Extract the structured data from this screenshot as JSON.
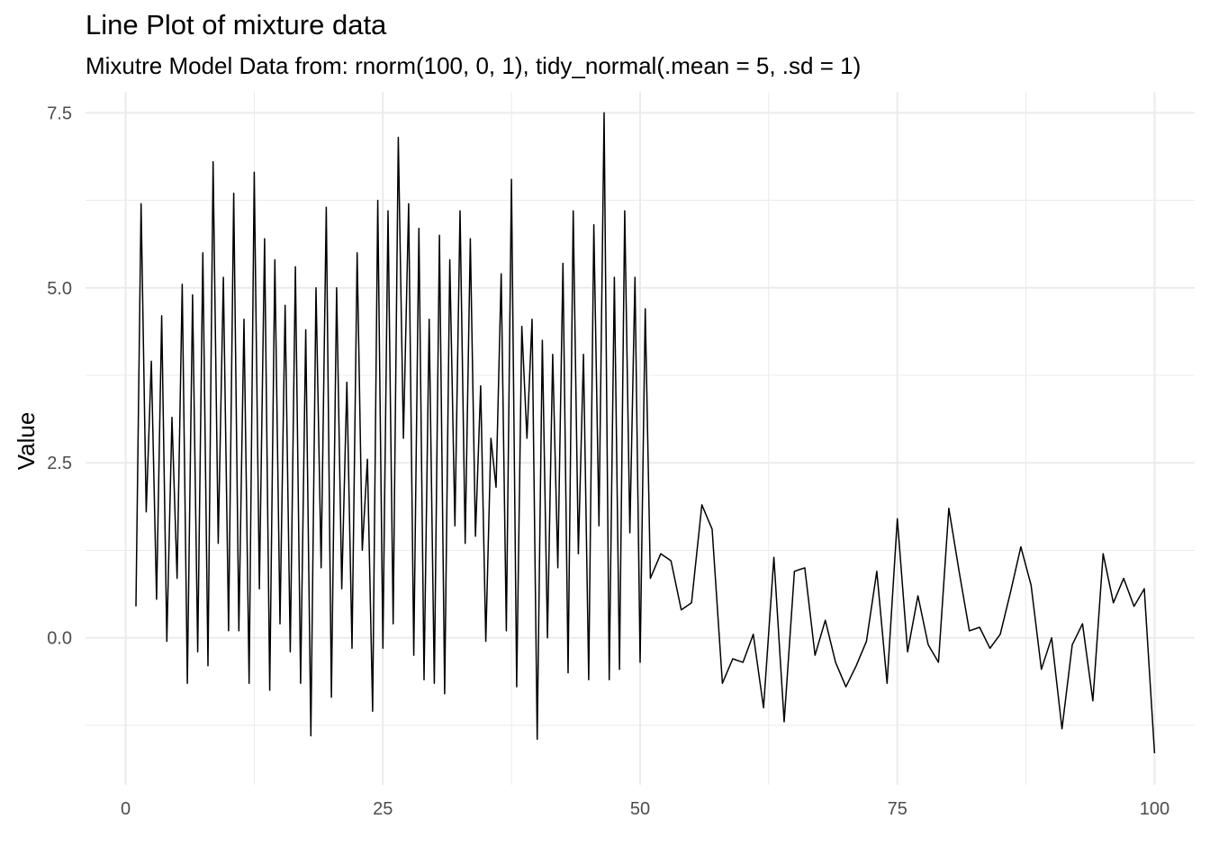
{
  "chart_data": {
    "type": "line",
    "title": "Line Plot of mixture data",
    "subtitle": "Mixutre Model Data from: rnorm(100, 0, 1), tidy_normal(.mean = 5, .sd = 1)",
    "xlabel": "",
    "ylabel": "Value",
    "xlim": [
      -3.9,
      103.9
    ],
    "ylim": [
      -2.1,
      7.8
    ],
    "x_ticks": [
      0,
      25,
      50,
      75,
      100
    ],
    "x_tick_labels": [
      "0",
      "25",
      "50",
      "75",
      "100"
    ],
    "y_ticks": [
      0,
      2.5,
      5,
      7.5
    ],
    "y_tick_labels": [
      "0.0",
      "2.5",
      "5.0",
      "7.5"
    ],
    "grid": true,
    "line_color": "#000000",
    "grid_color": "#ebebeb",
    "series": [
      {
        "x": [
          1,
          1.5,
          2,
          2.5,
          3,
          3.5,
          4,
          4.5,
          5,
          5.5,
          6,
          6.5,
          7,
          7.5,
          8,
          8.5,
          9,
          9.5,
          10,
          10.5,
          11,
          11.5,
          12,
          12.5,
          13,
          13.5,
          14,
          14.5,
          15,
          15.5,
          16,
          16.5,
          17,
          17.5,
          18,
          18.5,
          19,
          19.5,
          20,
          20.5,
          21,
          21.5,
          22,
          22.5,
          23,
          23.5,
          24,
          24.5,
          25,
          25.5,
          26,
          26.5,
          27,
          27.5,
          28,
          28.5,
          29,
          29.5,
          30,
          30.5,
          31,
          31.5,
          32,
          32.5,
          33,
          33.5,
          34,
          34.5,
          35,
          35.5,
          36,
          36.5,
          37,
          37.5,
          38,
          38.5,
          39,
          39.5,
          40,
          40.5,
          41,
          41.5,
          42,
          42.5,
          43,
          43.5,
          44,
          44.5,
          45,
          45.5,
          46,
          46.5,
          47,
          47.5,
          48,
          48.5,
          49,
          49.5,
          50,
          50.5,
          51,
          52,
          53,
          54,
          55,
          56,
          57,
          58,
          59,
          60,
          61,
          62,
          63,
          64,
          65,
          66,
          67,
          68,
          69,
          70,
          71,
          72,
          73,
          74,
          75,
          76,
          77,
          78,
          79,
          80,
          81,
          82,
          83,
          84,
          85,
          86,
          87,
          88,
          89,
          90,
          91,
          92,
          93,
          94,
          95,
          96,
          97,
          98,
          99,
          100
        ],
        "values": [
          0.45,
          6.2,
          1.8,
          3.95,
          0.55,
          4.6,
          -0.05,
          3.15,
          0.85,
          5.05,
          -0.65,
          4.9,
          -0.2,
          5.5,
          -0.4,
          6.8,
          1.35,
          5.15,
          0.1,
          6.35,
          0.1,
          4.55,
          -0.65,
          6.65,
          0.7,
          5.7,
          -0.75,
          5.4,
          0.2,
          4.75,
          -0.2,
          5.3,
          -0.65,
          4.4,
          -1.4,
          5.0,
          1.0,
          6.15,
          -0.85,
          5.0,
          0.7,
          3.65,
          -0.15,
          5.5,
          1.25,
          2.55,
          -1.05,
          6.25,
          -0.15,
          6.1,
          0.2,
          7.15,
          2.85,
          6.2,
          -0.25,
          5.85,
          -0.6,
          4.55,
          -0.65,
          5.75,
          -0.8,
          5.4,
          1.6,
          6.1,
          1.35,
          5.7,
          1.45,
          3.6,
          -0.05,
          2.85,
          2.15,
          5.2,
          0.1,
          6.55,
          -0.7,
          4.45,
          2.85,
          4.55,
          -1.45,
          4.25,
          0.0,
          4.05,
          1.0,
          5.35,
          -0.5,
          6.1,
          1.2,
          4.05,
          -0.6,
          5.9,
          1.6,
          7.5,
          -0.6,
          5.15,
          -0.45,
          6.1,
          1.5,
          5.15,
          -0.35,
          4.7,
          0.85,
          1.2,
          1.1,
          0.4,
          0.5,
          1.9,
          1.55,
          -0.65,
          -0.3,
          -0.35,
          0.05,
          -1.0,
          1.15,
          -1.2,
          0.95,
          1.0,
          -0.25,
          0.25,
          -0.35,
          -0.7,
          -0.4,
          -0.05,
          0.95,
          -0.65,
          1.7,
          -0.2,
          0.6,
          -0.1,
          -0.35,
          1.85,
          0.95,
          0.1,
          0.15,
          -0.15,
          0.05,
          0.65,
          1.3,
          0.75,
          -0.45,
          0.0,
          -1.3,
          -0.1,
          0.2,
          -0.9,
          1.2,
          0.5,
          0.85,
          0.45,
          0.7,
          -1.65
        ]
      }
    ]
  }
}
